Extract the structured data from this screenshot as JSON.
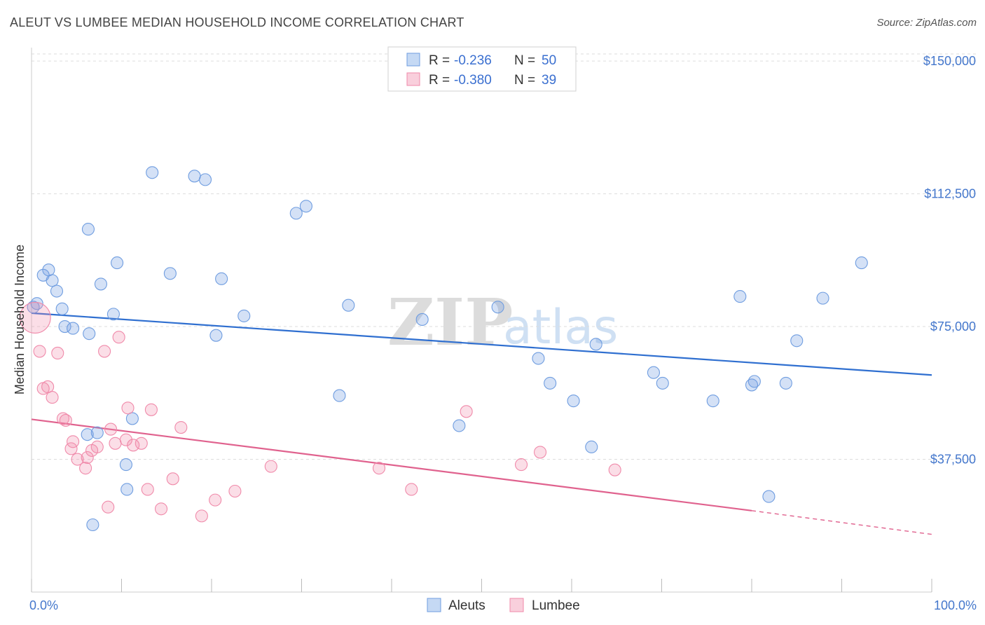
{
  "title": "ALEUT VS LUMBEE MEDIAN HOUSEHOLD INCOME CORRELATION CHART",
  "source": "Source: ZipAtlas.com",
  "watermark": {
    "zip": "ZIP",
    "atlas": "atlas"
  },
  "legend": {
    "rows": [
      {
        "r_label": "R =",
        "r_value": "-0.236",
        "n_label": "N =",
        "n_value": "50"
      },
      {
        "r_label": "R =",
        "r_value": "-0.380",
        "n_label": "N =",
        "n_value": "39"
      }
    ]
  },
  "chart_data": {
    "type": "scatter",
    "title": "ALEUT VS LUMBEE MEDIAN HOUSEHOLD INCOME CORRELATION CHART",
    "xlabel": "",
    "ylabel": "Median Household Income",
    "xlim": [
      0,
      100
    ],
    "ylim": [
      0,
      152000
    ],
    "x_tick_labels": [
      "0.0%",
      "100.0%"
    ],
    "y_ticks": [
      37500,
      75000,
      112500,
      150000
    ],
    "y_tick_labels": [
      "$37,500",
      "$75,000",
      "$112,500",
      "$150,000"
    ],
    "colors": {
      "Aleuts": "#6f9de0",
      "Lumbee": "#f08aaa",
      "Aleuts_line": "#2f6fd0",
      "Lumbee_line": "#e0628e"
    },
    "series": [
      {
        "name": "Aleuts",
        "points": [
          [
            0.2,
            80.5
          ],
          [
            0.6,
            81.5
          ],
          [
            1.3,
            89.5
          ],
          [
            1.9,
            91
          ],
          [
            2.3,
            88
          ],
          [
            2.8,
            85
          ],
          [
            3.4,
            80
          ],
          [
            3.7,
            75
          ],
          [
            4.6,
            74.5
          ],
          [
            6.3,
            102.5
          ],
          [
            6.2,
            44.5
          ],
          [
            6.4,
            73
          ],
          [
            6.8,
            19
          ],
          [
            7.3,
            45
          ],
          [
            7.7,
            87
          ],
          [
            9.1,
            78.5
          ],
          [
            9.5,
            93
          ],
          [
            10.5,
            36
          ],
          [
            10.6,
            29
          ],
          [
            11.2,
            49
          ],
          [
            13.4,
            118.5
          ],
          [
            15.4,
            90
          ],
          [
            18.1,
            117.5
          ],
          [
            19.3,
            116.5
          ],
          [
            20.5,
            72.5
          ],
          [
            21.1,
            88.5
          ],
          [
            23.6,
            78
          ],
          [
            29.4,
            107
          ],
          [
            30.5,
            109
          ],
          [
            34.2,
            55.5
          ],
          [
            35.2,
            81
          ],
          [
            43.4,
            77
          ],
          [
            47.5,
            47
          ],
          [
            51.8,
            80.5
          ],
          [
            56.3,
            66
          ],
          [
            57.6,
            59
          ],
          [
            60.2,
            54
          ],
          [
            62.2,
            41
          ],
          [
            62.7,
            70
          ],
          [
            69.1,
            62
          ],
          [
            70.1,
            59
          ],
          [
            75.7,
            54
          ],
          [
            78.7,
            83.5
          ],
          [
            80.0,
            58.5
          ],
          [
            80.3,
            59.5
          ],
          [
            81.9,
            27
          ],
          [
            83.8,
            59
          ],
          [
            85.0,
            71
          ],
          [
            87.9,
            83
          ],
          [
            92.2,
            93
          ]
        ]
      },
      {
        "name": "Lumbee",
        "points": [
          [
            0.4,
            77.5
          ],
          [
            0.9,
            68
          ],
          [
            1.3,
            57.5
          ],
          [
            1.8,
            58
          ],
          [
            2.3,
            55
          ],
          [
            2.9,
            67.5
          ],
          [
            3.5,
            49
          ],
          [
            3.8,
            48.5
          ],
          [
            4.4,
            40.5
          ],
          [
            4.6,
            42.5
          ],
          [
            5.1,
            37.5
          ],
          [
            6.0,
            35
          ],
          [
            6.2,
            38
          ],
          [
            6.7,
            40
          ],
          [
            7.3,
            41
          ],
          [
            8.1,
            68
          ],
          [
            8.5,
            24
          ],
          [
            8.8,
            46
          ],
          [
            9.3,
            42
          ],
          [
            9.7,
            72
          ],
          [
            10.5,
            43
          ],
          [
            10.7,
            52
          ],
          [
            11.3,
            41.5
          ],
          [
            12.2,
            42
          ],
          [
            12.9,
            29
          ],
          [
            13.3,
            51.5
          ],
          [
            14.4,
            23.5
          ],
          [
            15.7,
            32
          ],
          [
            16.6,
            46.5
          ],
          [
            18.9,
            21.5
          ],
          [
            20.4,
            26
          ],
          [
            22.6,
            28.5
          ],
          [
            26.6,
            35.5
          ],
          [
            38.6,
            35
          ],
          [
            42.2,
            29
          ],
          [
            48.3,
            51
          ],
          [
            54.4,
            36
          ],
          [
            56.5,
            39.5
          ],
          [
            64.8,
            34.5
          ]
        ]
      }
    ],
    "trend_lines": [
      {
        "name": "Aleuts",
        "x": [
          0,
          100
        ],
        "y": [
          78.8,
          61.3
        ]
      },
      {
        "name": "Lumbee",
        "x": [
          0,
          80
        ],
        "y": [
          48.8,
          23.0
        ],
        "dashed_extension_x": [
          80,
          100
        ],
        "dashed_extension_y": [
          23.0,
          16.3
        ]
      }
    ],
    "y_units": "thousand USD"
  },
  "bottom_legend": {
    "items": [
      "Aleuts",
      "Lumbee"
    ]
  }
}
